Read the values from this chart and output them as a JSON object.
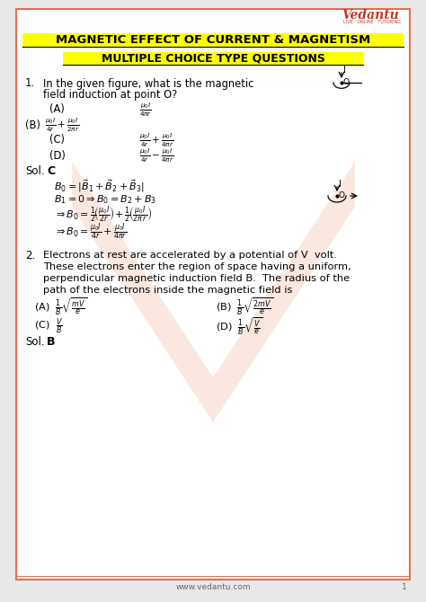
{
  "title": "MAGNETIC EFFECT OF CURRENT & MAGNETISM",
  "subtitle": "MULTIPLE CHOICE TYPE QUESTIONS",
  "border_color": "#e07050",
  "highlight_bg": "#ffff00",
  "vedantu_color": "#c0392b",
  "footer": "www.vedantu.com",
  "page_num": "1",
  "outer_bg": "#e8e8e8",
  "page_bg": "#ffffff",
  "watermark_color": "#f2c4b0"
}
